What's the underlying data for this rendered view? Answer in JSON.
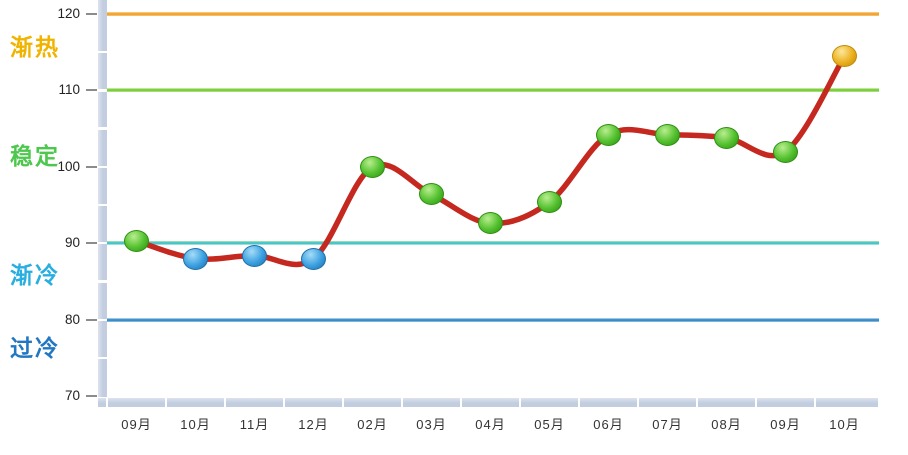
{
  "chart_data": {
    "type": "line",
    "title": "",
    "categories": [
      "09月",
      "10月",
      "11月",
      "12月",
      "02月",
      "03月",
      "04月",
      "05月",
      "06月",
      "07月",
      "08月",
      "09月",
      "10月"
    ],
    "values": [
      90.3,
      88,
      88.4,
      88,
      100,
      96.4,
      92.6,
      95.4,
      104.2,
      104.2,
      103.8,
      102,
      114.5
    ],
    "point_states": [
      "stable",
      "cold",
      "cold",
      "cold",
      "stable",
      "stable",
      "stable",
      "stable",
      "stable",
      "stable",
      "stable",
      "stable",
      "hot"
    ],
    "y_ticks": [
      120,
      110,
      100,
      90,
      80,
      70
    ],
    "ylim": [
      70,
      120
    ],
    "grid": "off",
    "legend": "none",
    "line_color": "#c5281f",
    "axis_bar_color": "#c2cddf",
    "marker_palette": {
      "stable": "#4fbe2c",
      "cold": "#3ba0e0",
      "hot": "#ecb01f"
    },
    "zones": [
      {
        "label": "渐热",
        "value": 120,
        "state": "hot",
        "label_color": "#f0b400",
        "line_color": "#f2a433",
        "glow_top": "#fbd9a2",
        "glow_bottom": "#f8cf92"
      },
      {
        "label": "稳定",
        "value": 110,
        "state": "stable",
        "label_color": "#4dc74d",
        "line_color": "#79ce3e",
        "glow_top": "#e7f5c8",
        "glow_bottom": "#c9ea9f"
      },
      {
        "label": "渐冷",
        "value": 90,
        "state": "cool",
        "label_color": "#29aee0",
        "line_color": "#49c5c8",
        "glow_top": "#c2e9ae",
        "glow_bottom": "#d8f3f3"
      },
      {
        "label": "过冷",
        "value": 80,
        "state": "cold",
        "label_color": "#2277c3",
        "line_color": "#3e8cc7",
        "glow_top": "#cfe7f7",
        "glow_bottom": "#abd5ef"
      }
    ]
  }
}
